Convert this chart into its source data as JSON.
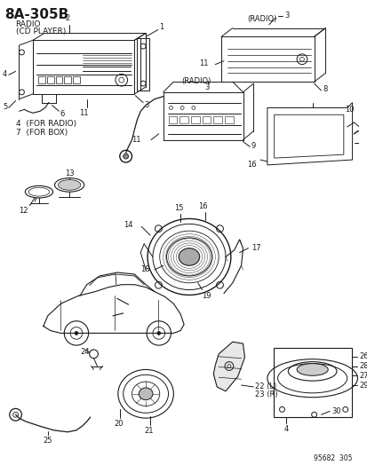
{
  "title": "8A–305B",
  "sub1": "RADIO",
  "sub2": "(CD PLAYER)",
  "footer": "95682  305",
  "bg": "#ffffff",
  "lc": "#1a1a1a"
}
